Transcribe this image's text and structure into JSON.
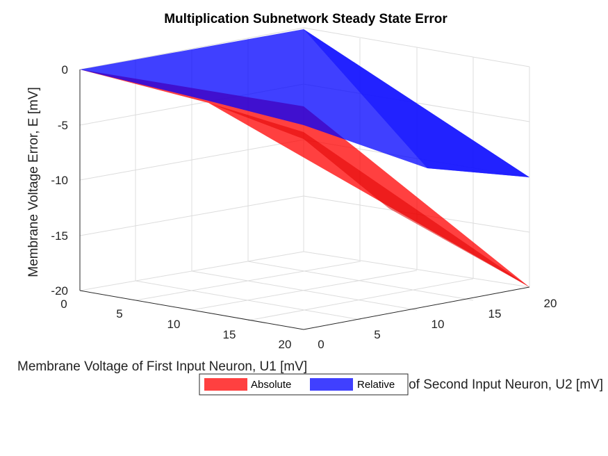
{
  "chart_data": {
    "type": "surface3d",
    "title": "Multiplication Subnetwork Steady State Error",
    "xlabel": "Membrane Voltage of First Input Neuron, U1 [mV]",
    "ylabel": "Membrane Voltage of Second Input Neuron, U2 [mV]",
    "zlabel": "Membrane Voltage Error, E [mV]",
    "xlim": [
      0,
      20
    ],
    "ylim": [
      0,
      20
    ],
    "zlim": [
      -20,
      0
    ],
    "x_ticks": [
      "0",
      "5",
      "10",
      "15",
      "20"
    ],
    "y_ticks": [
      "0",
      "5",
      "10",
      "15",
      "20"
    ],
    "z_ticks": [
      "0",
      "-5",
      "-10",
      "-15",
      "-20"
    ],
    "grid": true,
    "legend_position": "bottom",
    "series": [
      {
        "name": "Absolute",
        "color": "#ff0000",
        "corners": {
          "u1_0_u2_0": 0,
          "u1_20_u2_0": -3.8,
          "u1_0_u2_20": -0.5,
          "u1_20_u2_20": -20
        }
      },
      {
        "name": "Relative",
        "color": "#0000ff",
        "corners": {
          "u1_0_u2_0": 0,
          "u1_20_u2_0": -4.5,
          "u1_0_u2_20": 0,
          "u1_20_u2_20": -9.7
        }
      }
    ]
  }
}
